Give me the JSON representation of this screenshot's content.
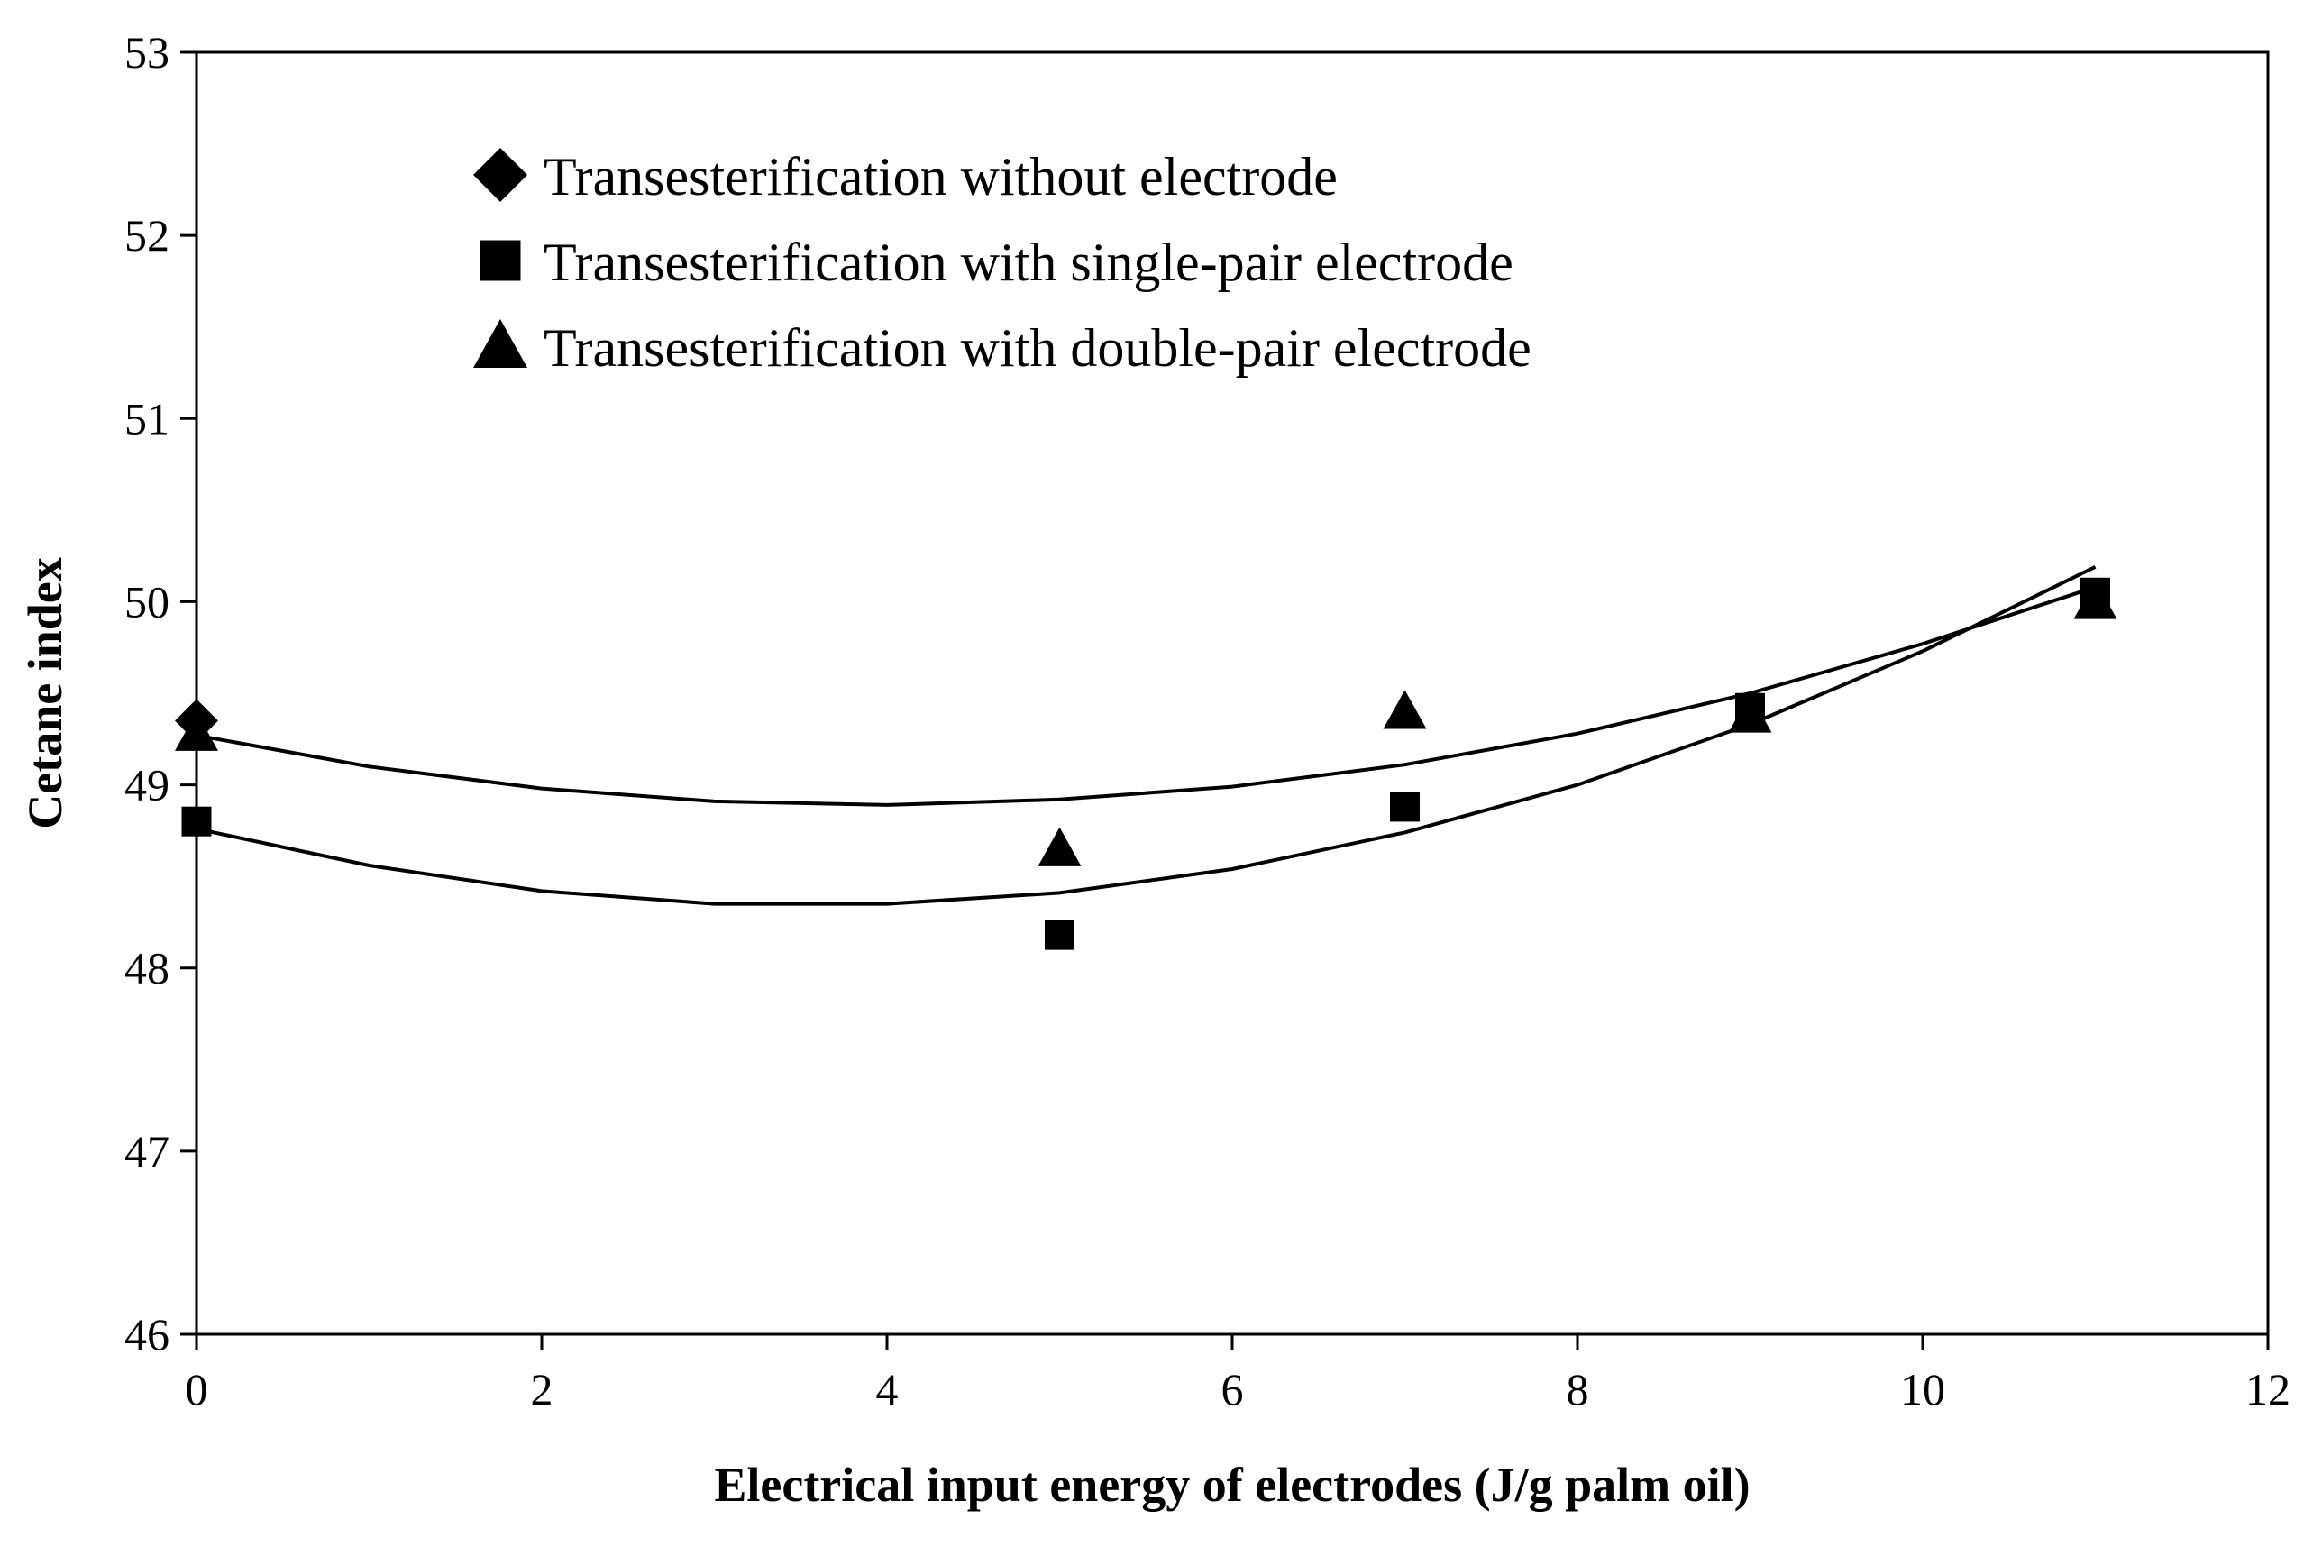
{
  "chart_data": {
    "type": "scatter",
    "title": "",
    "xlabel": "Electrical input energy of electrodes  (J/g palm oil)",
    "ylabel": "Cetane index",
    "xlim": [
      0,
      12
    ],
    "ylim": [
      46,
      53
    ],
    "xticks": [
      0,
      2,
      4,
      6,
      8,
      10,
      12
    ],
    "yticks": [
      46,
      47,
      48,
      49,
      50,
      51,
      52,
      53
    ],
    "xtick_labels": [
      "0",
      "2",
      "4",
      "6",
      "8",
      "10",
      "12"
    ],
    "ytick_labels": [
      "46",
      "47",
      "48",
      "49",
      "50",
      "51",
      "52",
      "53"
    ],
    "legend_position": "top-left",
    "grid": false,
    "series": [
      {
        "name": "Transesterification without electrode",
        "marker": "diamond",
        "color": "#000000",
        "x": [
          0
        ],
        "y": [
          49.35
        ]
      },
      {
        "name": "Transesterification with single-pair electrode",
        "marker": "square",
        "color": "#000000",
        "x": [
          0,
          5,
          7,
          9,
          11
        ],
        "y": [
          48.8,
          48.18,
          48.88,
          49.42,
          50.05
        ]
      },
      {
        "name": "Transesterification with double-pair electrode",
        "marker": "triangle",
        "color": "#000000",
        "x": [
          0,
          5,
          7,
          9,
          11
        ],
        "y": [
          49.28,
          48.65,
          49.4,
          49.38,
          50.0
        ]
      }
    ],
    "trendlines": [
      {
        "series": "Transesterification with single-pair electrode",
        "type": "polynomial-2",
        "x": [
          0,
          1,
          2,
          3,
          4,
          5,
          6,
          7,
          8,
          9,
          10,
          11
        ],
        "y": [
          48.76,
          48.56,
          48.42,
          48.35,
          48.35,
          48.41,
          48.54,
          48.74,
          49.0,
          49.33,
          49.73,
          50.19
        ]
      },
      {
        "series": "Transesterification with double-pair electrode",
        "type": "polynomial-2",
        "x": [
          0,
          1,
          2,
          3,
          4,
          5,
          6,
          7,
          8,
          9,
          10,
          11
        ],
        "y": [
          49.27,
          49.1,
          48.98,
          48.91,
          48.89,
          48.92,
          48.99,
          49.11,
          49.28,
          49.5,
          49.77,
          50.08
        ]
      }
    ]
  }
}
